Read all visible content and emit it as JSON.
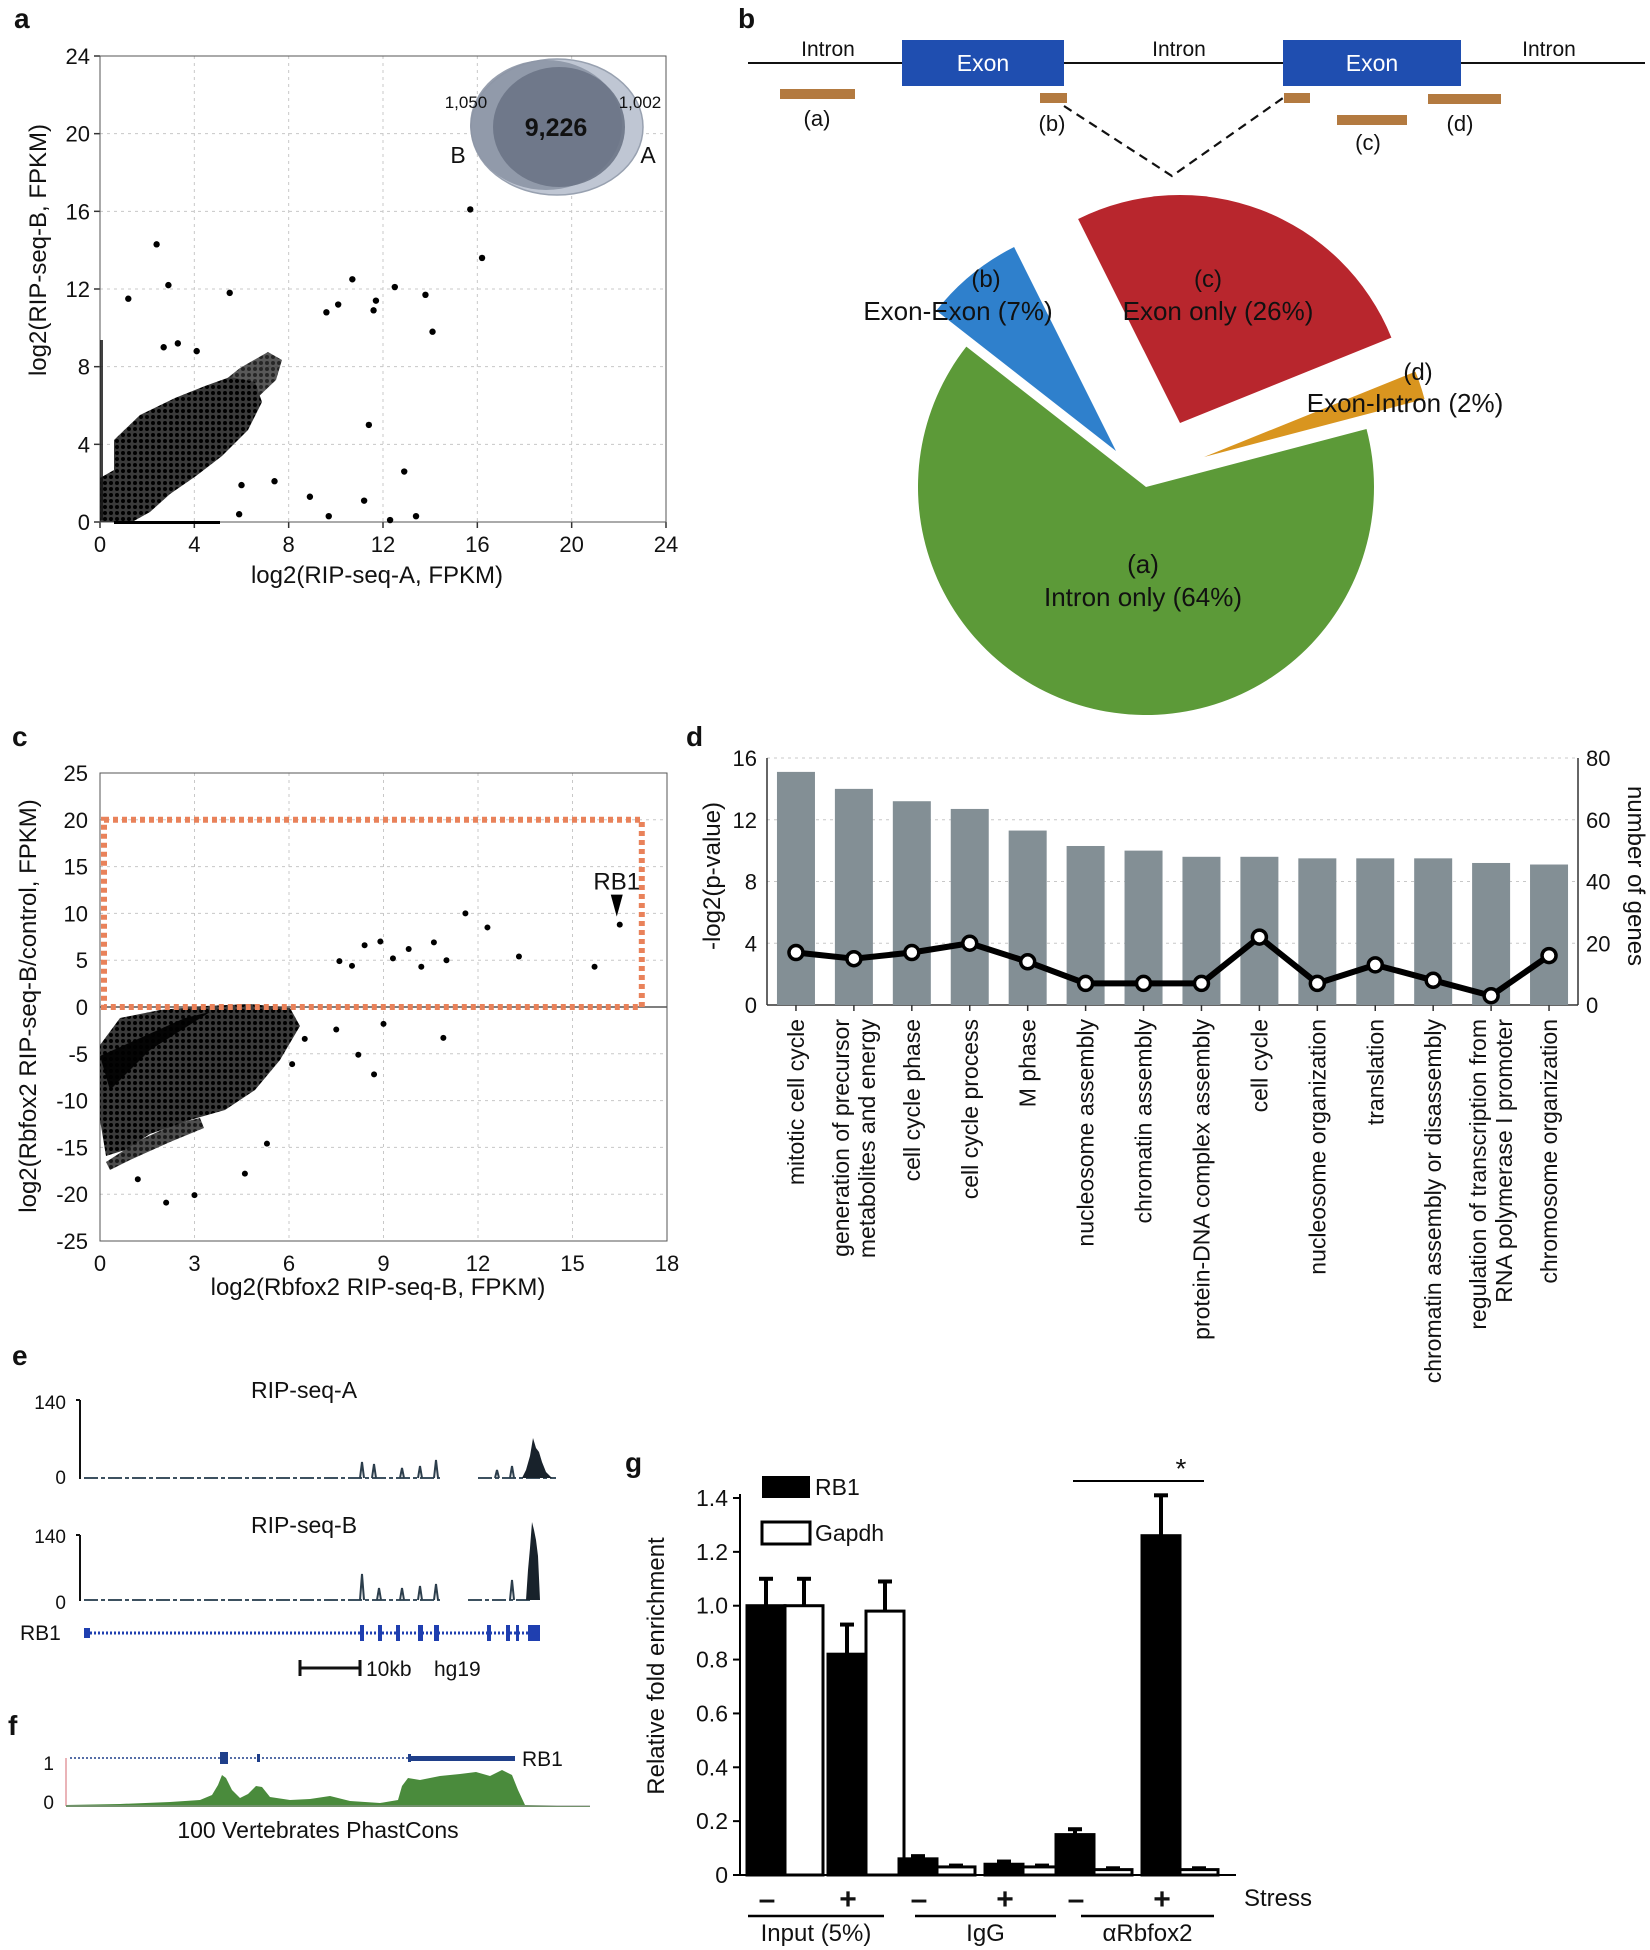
{
  "panels": {
    "a": "a",
    "b": "b",
    "c": "c",
    "d": "d",
    "e": "e",
    "f": "f",
    "g": "g"
  },
  "chart_data": [
    {
      "id": "a",
      "type": "scatter",
      "xlabel": "log2(RIP-seq-A, FPKM)",
      "ylabel": "log2(RIP-seq-B, FPKM)",
      "xlim": [
        0,
        24
      ],
      "ylim": [
        0,
        24
      ],
      "xticks": [
        "0",
        "4",
        "8",
        "12",
        "16",
        "20",
        "24"
      ],
      "yticks": [
        "0",
        "4",
        "8",
        "12",
        "16",
        "20",
        "24"
      ],
      "outliers": [
        [
          2.4,
          14.3
        ],
        [
          1.2,
          11.5
        ],
        [
          2.9,
          12.2
        ],
        [
          5.5,
          11.8
        ],
        [
          3.3,
          9.2
        ],
        [
          4.1,
          8.8
        ],
        [
          2.7,
          9.0
        ],
        [
          9.6,
          10.8
        ],
        [
          10.1,
          11.2
        ],
        [
          11.6,
          10.9
        ],
        [
          11.7,
          11.4
        ],
        [
          10.7,
          12.5
        ],
        [
          12.5,
          12.1
        ],
        [
          13.8,
          11.7
        ],
        [
          15.7,
          16.1
        ],
        [
          16.2,
          13.6
        ],
        [
          14.1,
          9.8
        ],
        [
          11.4,
          5.0
        ],
        [
          12.9,
          2.6
        ],
        [
          11.2,
          1.1
        ],
        [
          8.9,
          1.3
        ],
        [
          9.7,
          0.3
        ],
        [
          6.0,
          1.9
        ],
        [
          7.4,
          2.1
        ],
        [
          5.9,
          0.4
        ],
        [
          12.3,
          0.1
        ],
        [
          13.4,
          0.3
        ]
      ],
      "venn": {
        "left_only": "1,050",
        "overlap": "9,226",
        "right_only": "1,002",
        "left_set": "B",
        "right_set": "A"
      }
    },
    {
      "id": "b",
      "type": "pie",
      "title": "",
      "gene_model": [
        "Intron",
        "Exon",
        "Intron",
        "Exon",
        "Intron"
      ],
      "read_classes": [
        "(a)",
        "(b)",
        "(c)",
        "(d)"
      ],
      "slices": [
        {
          "key": "(a)",
          "label": "Intron only (64%)",
          "value": 64,
          "color": "#5c9a38"
        },
        {
          "key": "(b)",
          "label": "Exon-Exon (7%)",
          "value": 7,
          "color": "#2f80cc"
        },
        {
          "key": "(c)",
          "label": "Exon only (26%)",
          "value": 26,
          "color": "#b8262d"
        },
        {
          "key": "(d)",
          "label": "Exon-Intron (2%)",
          "value": 2,
          "color": "#d9951f"
        }
      ]
    },
    {
      "id": "c",
      "type": "scatter",
      "xlabel": "log2(Rbfox2 RIP-seq-B, FPKM)",
      "ylabel": "log2(Rbfox2 RIP-seq-B/control, FPKM)",
      "xlim": [
        0,
        18
      ],
      "ylim": [
        -25,
        25
      ],
      "xticks": [
        "0",
        "3",
        "6",
        "9",
        "12",
        "15",
        "18"
      ],
      "yticks": [
        "-25",
        "-20",
        "-15",
        "-10",
        "-5",
        "0",
        "5",
        "10",
        "15",
        "20",
        "25"
      ],
      "highlight_box": {
        "x": [
          0,
          17.2
        ],
        "y": [
          0,
          20
        ]
      },
      "annotation": {
        "label": "RB1",
        "x": 16.5,
        "y": 8.8
      },
      "outliers": [
        [
          16.5,
          8.8
        ],
        [
          15.7,
          4.3
        ],
        [
          13.3,
          5.4
        ],
        [
          12.3,
          8.5
        ],
        [
          11.6,
          10.0
        ],
        [
          11.0,
          5.0
        ],
        [
          10.6,
          6.9
        ],
        [
          10.2,
          4.3
        ],
        [
          9.8,
          6.2
        ],
        [
          9.3,
          5.2
        ],
        [
          8.9,
          7.0
        ],
        [
          8.4,
          6.6
        ],
        [
          8.0,
          4.4
        ],
        [
          7.6,
          4.9
        ],
        [
          10.9,
          -3.3
        ],
        [
          8.2,
          -5.1
        ],
        [
          8.7,
          -7.2
        ],
        [
          7.5,
          -2.4
        ],
        [
          6.1,
          -6.1
        ],
        [
          5.3,
          -14.6
        ],
        [
          3.0,
          -20.1
        ],
        [
          2.1,
          -20.9
        ],
        [
          4.6,
          -17.8
        ],
        [
          1.2,
          -18.4
        ],
        [
          6.5,
          -3.4
        ],
        [
          9.0,
          -1.8
        ]
      ]
    },
    {
      "id": "d",
      "type": "bar",
      "ylabel": "-log2(p-value)",
      "y2label": "number of genes",
      "ylim": [
        0,
        16
      ],
      "y2lim": [
        0,
        80
      ],
      "yticks": [
        "0",
        "4",
        "8",
        "12",
        "16"
      ],
      "y2ticks": [
        "0",
        "20",
        "40",
        "60",
        "80"
      ],
      "categories": [
        "mitotic cell cycle",
        "generation of precursor metabolites and energy",
        "cell cycle phase",
        "cell cycle process",
        "M phase",
        "nucleosome assembly",
        "chromatin assembly",
        "protein-DNA complex assembly",
        "cell cycle",
        "nucleosome organization",
        "translation",
        "chromatin assembly or disassembly",
        "regulation of transcription from RNA polymerase I promoter",
        "chromosome organization"
      ],
      "category_lines": [
        [
          "mitotic cell cycle"
        ],
        [
          "generation of precursor",
          "metabolites and energy"
        ],
        [
          "cell cycle phase"
        ],
        [
          "cell cycle process"
        ],
        [
          "M phase"
        ],
        [
          "nucleosome assembly"
        ],
        [
          "chromatin assembly"
        ],
        [
          "protein-DNA complex assembly"
        ],
        [
          "cell cycle"
        ],
        [
          "nucleosome organization"
        ],
        [
          "translation"
        ],
        [
          "chromatin assembly or disassembly"
        ],
        [
          "regulation of transcription from",
          "RNA polymerase I promoter"
        ],
        [
          "chromosome organization"
        ]
      ],
      "series": [
        {
          "name": "-log2(p-value)",
          "kind": "bar",
          "values": [
            15.1,
            14.0,
            13.2,
            12.7,
            11.3,
            10.3,
            10.0,
            9.6,
            9.6,
            9.5,
            9.5,
            9.5,
            9.2,
            9.1
          ]
        },
        {
          "name": "number of genes",
          "kind": "line",
          "values": [
            17,
            15,
            17,
            20,
            14,
            7,
            7,
            7,
            22,
            7,
            13,
            8,
            3,
            16
          ]
        }
      ]
    },
    {
      "id": "e",
      "type": "area",
      "tracks": [
        {
          "name": "RIP-seq-A",
          "ymax": "140",
          "ymin": "0"
        },
        {
          "name": "RIP-seq-B",
          "ymax": "140",
          "ymin": "0"
        }
      ],
      "gene": "RB1",
      "scale_bar": "10kb",
      "assembly": "hg19"
    },
    {
      "id": "f",
      "type": "area",
      "gene": "RB1",
      "yticks": [
        "1",
        "0"
      ],
      "track_name": "100 Vertebrates PhastCons"
    },
    {
      "id": "g",
      "type": "bar",
      "ylabel": "Relative fold enrichment",
      "ylim": [
        0,
        1.4
      ],
      "yticks": [
        "0",
        "0.2",
        "0.4",
        "0.6",
        "0.8",
        "1.0",
        "1.2",
        "1.4"
      ],
      "legend": [
        "RB1",
        "Gapdh"
      ],
      "stress_label": "Stress",
      "stress": [
        "–",
        "+",
        "–",
        "+",
        "–",
        "+"
      ],
      "groups": [
        "Input (5%)",
        "IgG",
        "αRbfox2"
      ],
      "significance": "*",
      "series": [
        {
          "name": "RB1",
          "values": [
            1.0,
            0.82,
            0.06,
            0.04,
            0.15,
            1.26
          ],
          "errors": [
            0.1,
            0.11,
            0.01,
            0.01,
            0.02,
            0.15
          ]
        },
        {
          "name": "Gapdh",
          "values": [
            1.0,
            0.98,
            0.03,
            0.03,
            0.02,
            0.02
          ],
          "errors": [
            0.1,
            0.11,
            0.005,
            0.005,
            0.005,
            0.005
          ]
        }
      ]
    }
  ]
}
